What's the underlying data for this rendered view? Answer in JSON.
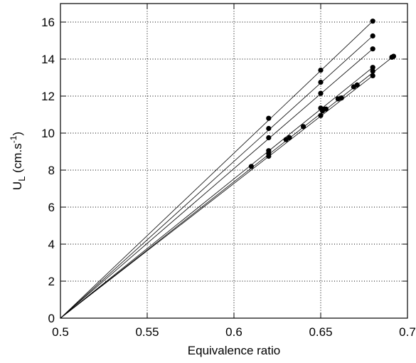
{
  "chart_data": {
    "type": "scatter",
    "title": "",
    "xlabel": "Equivalence ratio",
    "ylabel": {
      "main": "U",
      "sub": "L",
      "unit": " (cm.s",
      "sup": "-1",
      "close": ")"
    },
    "xlim": [
      0.5,
      0.7
    ],
    "ylim": [
      0,
      17
    ],
    "xticks": [
      0.5,
      0.55,
      0.6,
      0.65,
      0.7
    ],
    "xtick_labels": [
      "0.5",
      "0.55",
      "0.6",
      "0.65",
      "0.7"
    ],
    "yticks": [
      0,
      2,
      4,
      6,
      8,
      10,
      12,
      14,
      16
    ],
    "ytick_labels": [
      "0",
      "2",
      "4",
      "6",
      "8",
      "10",
      "12",
      "14",
      "16"
    ],
    "grid": true,
    "legend": "none",
    "series": [
      {
        "points": [
          [
            0.62,
            10.8
          ],
          [
            0.65,
            13.4
          ],
          [
            0.68,
            16.05
          ]
        ],
        "fit": [
          [
            0.5,
            0
          ],
          [
            0.68,
            16.05
          ]
        ]
      },
      {
        "points": [
          [
            0.62,
            10.25
          ],
          [
            0.65,
            12.75
          ],
          [
            0.68,
            15.25
          ]
        ],
        "fit": [
          [
            0.5,
            0
          ],
          [
            0.68,
            15.25
          ]
        ]
      },
      {
        "points": [
          [
            0.62,
            9.75
          ],
          [
            0.65,
            12.15
          ],
          [
            0.68,
            14.55
          ]
        ],
        "fit": [
          [
            0.5,
            0
          ],
          [
            0.68,
            14.55
          ]
        ]
      },
      {
        "points": [
          [
            0.62,
            9.05
          ],
          [
            0.65,
            11.35
          ],
          [
            0.68,
            13.55
          ]
        ],
        "fit": [
          [
            0.5,
            0
          ],
          [
            0.68,
            13.55
          ]
        ]
      },
      {
        "points": [
          [
            0.62,
            8.9
          ],
          [
            0.652,
            11.3
          ],
          [
            0.68,
            13.35
          ],
          [
            0.691,
            14.1
          ],
          [
            0.692,
            14.15
          ]
        ],
        "fit": [
          [
            0.5,
            0
          ],
          [
            0.692,
            14.15
          ]
        ]
      },
      {
        "points": [
          [
            0.61,
            8.2
          ],
          [
            0.62,
            8.75
          ],
          [
            0.63,
            9.65
          ],
          [
            0.632,
            9.75
          ],
          [
            0.64,
            10.35
          ],
          [
            0.65,
            10.95
          ],
          [
            0.651,
            11.2
          ],
          [
            0.653,
            11.3
          ],
          [
            0.66,
            11.85
          ],
          [
            0.662,
            11.9
          ],
          [
            0.669,
            12.5
          ],
          [
            0.671,
            12.6
          ],
          [
            0.68,
            13.1
          ]
        ],
        "fit": [
          [
            0.5,
            0
          ],
          [
            0.68,
            13.1
          ]
        ]
      }
    ]
  }
}
